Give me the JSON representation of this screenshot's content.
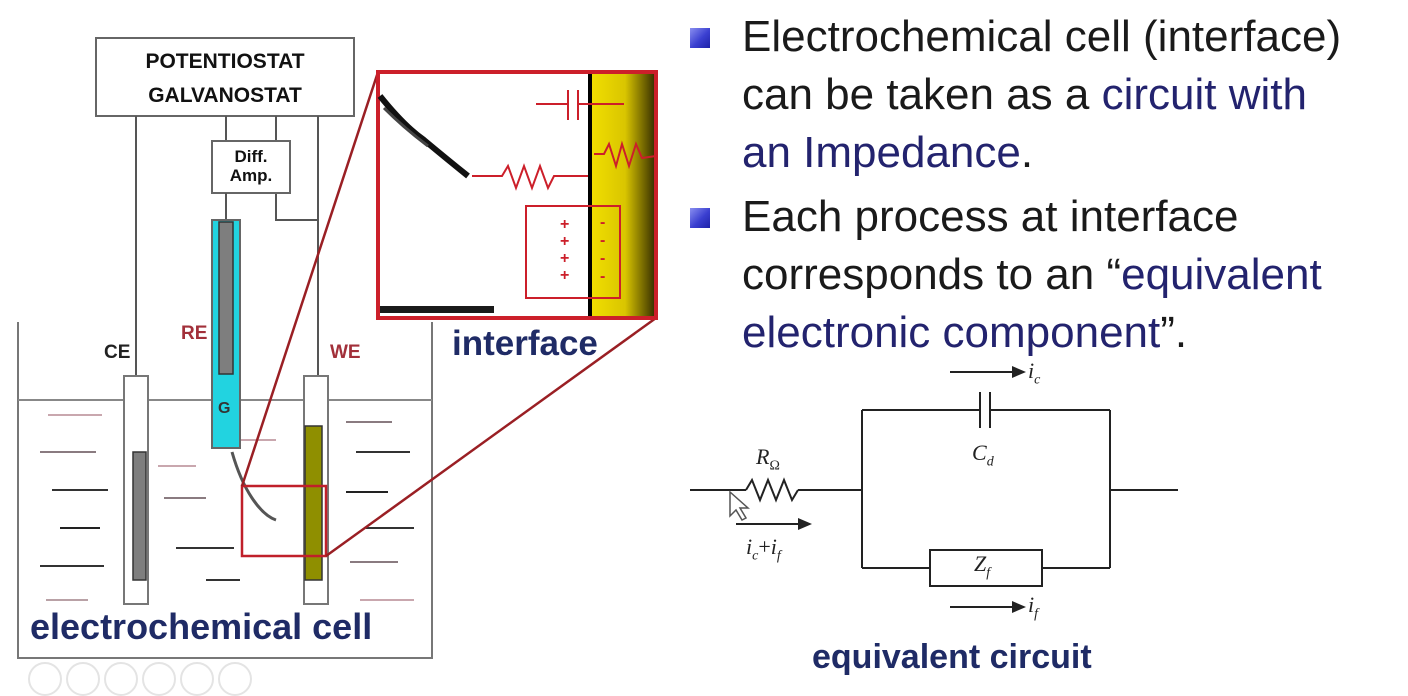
{
  "cell": {
    "instrument_line1": "POTENTIOSTAT",
    "instrument_line2": "GALVANOSTAT",
    "amp_line1": "Diff.",
    "amp_line2": "Amp.",
    "ce_label": "CE",
    "re_label": "RE",
    "we_label": "WE",
    "g_label": "G",
    "caption": "electrochemical cell",
    "colors": {
      "electrode_cyan": "#22d3e0",
      "we_fill": "#8f8f00",
      "red": "#c0202a",
      "navy": "#1f2b66"
    }
  },
  "interface": {
    "caption": "interface",
    "plus": "+",
    "minus": "-",
    "colors": {
      "gold": "#e7d400",
      "frame": "#cc1f2a"
    }
  },
  "bullets": [
    {
      "line1": "Electrochemical cell (interface)",
      "line2a": "can be taken as a ",
      "line2b": "circuit  with",
      "line3": "an Impedance",
      "line3end": "."
    },
    {
      "line1": "Each process at interface",
      "line2a": "corresponds to an “",
      "line2b": "equivalent",
      "line3": "electronic component",
      "line3end": "”."
    }
  ],
  "circuit": {
    "r_label": "R",
    "r_sub": "Ω",
    "c_label": "C",
    "c_sub": "d",
    "z_label": "Z",
    "z_sub": "f",
    "ic_label": "i",
    "ic_sub": "c",
    "if_label": "i",
    "if_sub": "f",
    "total_current": "i",
    "total_sub1": "c",
    "total_plus": "+",
    "total_sub2": "f",
    "caption": "equivalent circuit"
  }
}
